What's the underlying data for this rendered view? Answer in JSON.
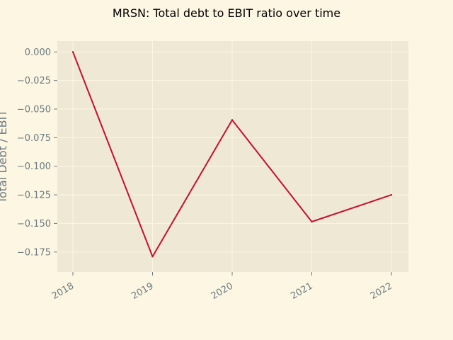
{
  "chart_data": {
    "type": "line",
    "title": "MRSN: Total debt to EBIT ratio over time",
    "xlabel": "",
    "ylabel": "Total Debt / EBIT",
    "x": [
      "2018",
      "2019",
      "2020",
      "2021",
      "2022"
    ],
    "series": [
      {
        "values": [
          0.0,
          -0.179,
          -0.0595,
          -0.1485,
          -0.125
        ],
        "color": "#c8102e"
      }
    ],
    "yticks": [
      "0.000",
      "−0.025",
      "−0.050",
      "−0.075",
      "−0.100",
      "−0.125",
      "−0.150",
      "−0.175"
    ],
    "ylim": [
      -0.1925,
      0.0095
    ],
    "grid": true,
    "legend": "none"
  },
  "colors": {
    "page_background": "#fdf6e3",
    "plot_background": "#eee8d5",
    "grid": "#fdf6e3",
    "tick_text": "#6c7b80",
    "series_line": "#c8102e"
  }
}
